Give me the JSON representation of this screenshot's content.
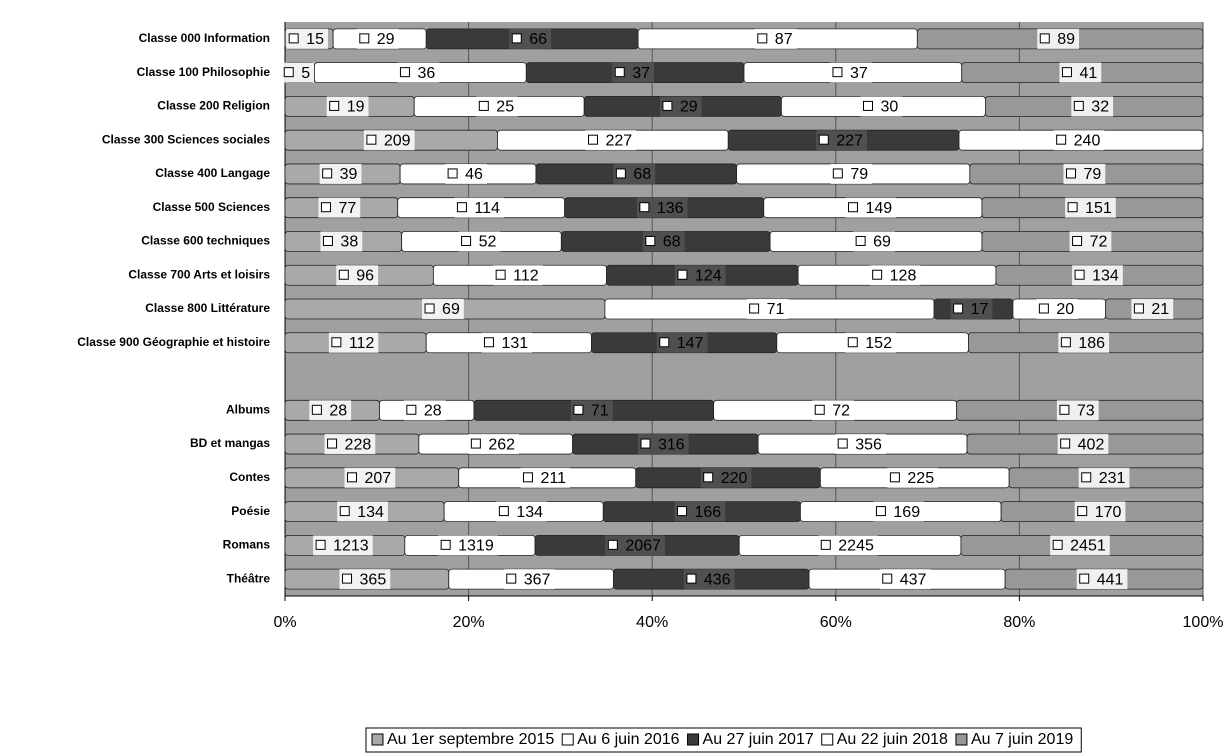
{
  "chart_data": {
    "type": "stacked_bar_100",
    "categories": [
      "Classe 000 Information",
      "Classe 100 Philosophie",
      "Classe 200 Religion",
      "Classe 300 Sciences sociales",
      "Classe 400 Langage",
      "Classe 500 Sciences",
      "Classe 600 techniques",
      "Classe 700 Arts et loisirs",
      "Classe 800 Littérature",
      "Classe 900 Géographie et histoire",
      null,
      "Albums",
      "BD et mangas",
      "Contes",
      "Poésie",
      "Romans",
      "Théâtre"
    ],
    "series": [
      {
        "name": "Au 1er septembre 2015",
        "color": "#a9a9a9",
        "values": [
          15,
          5,
          19,
          209,
          39,
          77,
          38,
          96,
          69,
          112,
          null,
          28,
          228,
          207,
          134,
          1213,
          365
        ]
      },
      {
        "name": "Au 6 juin 2016",
        "color": "#ffffff",
        "values": [
          29,
          36,
          25,
          227,
          46,
          114,
          52,
          112,
          71,
          131,
          null,
          28,
          262,
          211,
          134,
          1319,
          367
        ]
      },
      {
        "name": "Au 27 juin 2017",
        "color": "#3a3a3a",
        "values": [
          66,
          37,
          29,
          227,
          68,
          136,
          68,
          124,
          17,
          147,
          null,
          71,
          316,
          220,
          166,
          2067,
          436
        ]
      },
      {
        "name": "Au 22 juin 2018",
        "color": "#ffffff",
        "values": [
          87,
          37,
          30,
          240,
          79,
          149,
          69,
          128,
          20,
          152,
          null,
          72,
          356,
          225,
          169,
          2245,
          437
        ]
      },
      {
        "name": "Au 7 juin 2019",
        "color": "#989898",
        "values": [
          89,
          41,
          32,
          null,
          79,
          151,
          72,
          134,
          21,
          186,
          null,
          73,
          402,
          231,
          170,
          2451,
          441
        ]
      }
    ],
    "xlim": [
      0,
      100
    ],
    "xticks": [
      {
        "value": 0,
        "label": "0%"
      },
      {
        "value": 20,
        "label": "20%"
      },
      {
        "value": 40,
        "label": "40%"
      },
      {
        "value": 60,
        "label": "60%"
      },
      {
        "value": 80,
        "label": "80%"
      },
      {
        "value": 100,
        "label": "100%"
      }
    ],
    "grid": true,
    "legend": "bottom"
  }
}
